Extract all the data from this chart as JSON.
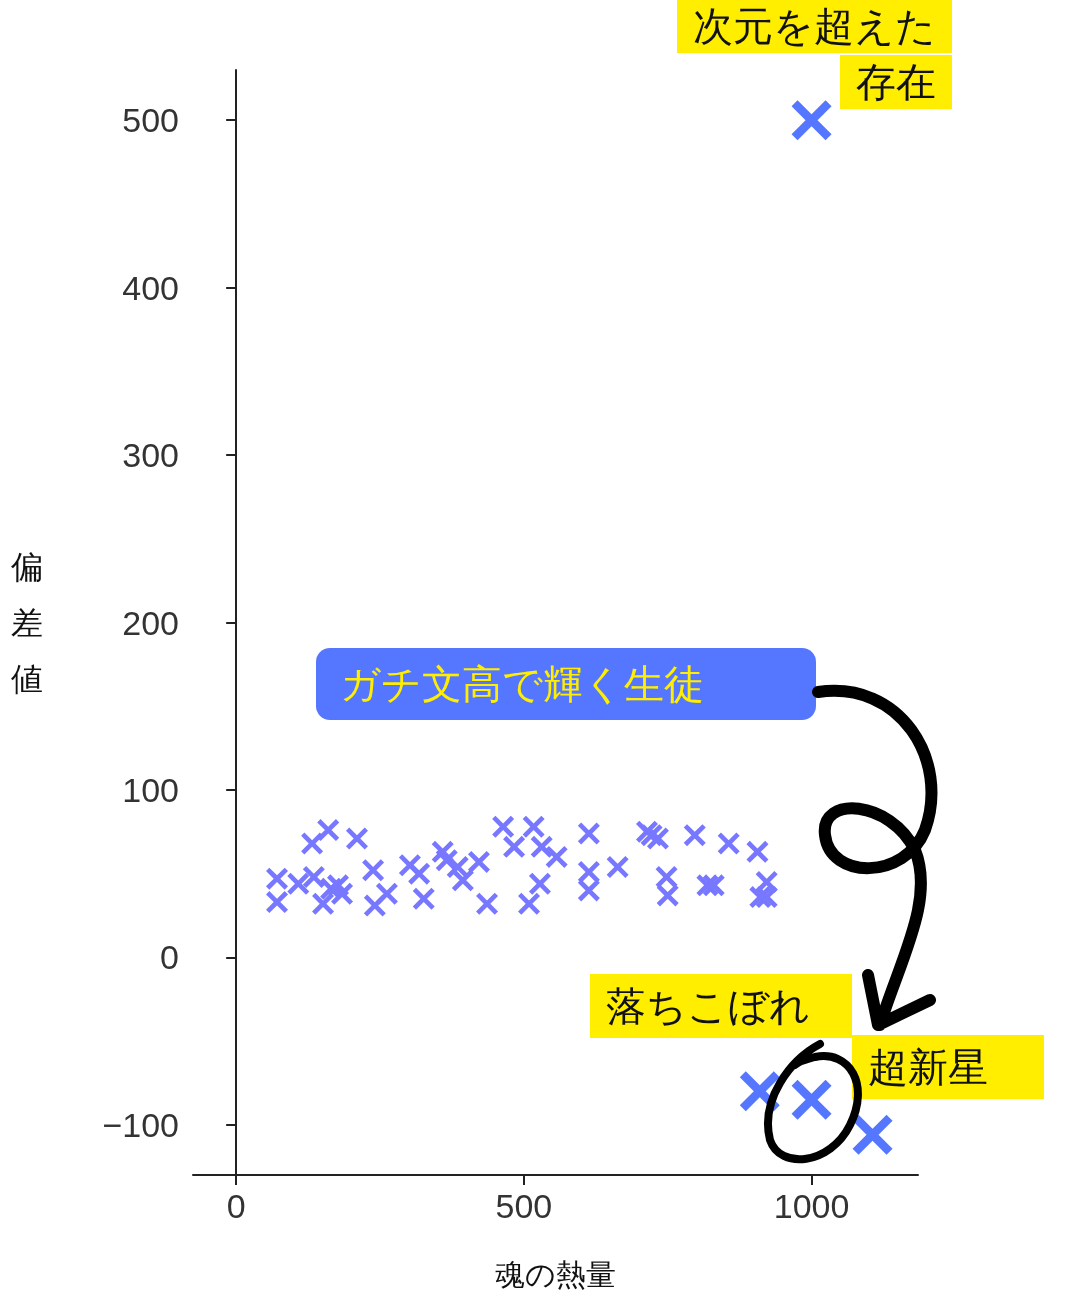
{
  "chart_data": {
    "type": "scatter",
    "xlabel": "魂の熱量",
    "ylabel": "偏差値",
    "xlim": [
      -75,
      1185
    ],
    "ylim": [
      -130,
      530
    ],
    "xticks": [
      0,
      500,
      1000
    ],
    "yticks": [
      -100,
      0,
      100,
      200,
      300,
      400,
      500
    ],
    "grid": false,
    "marker": "cross",
    "series": [
      {
        "color": "#7777ff",
        "x": [
          71,
          71,
          108,
          132,
          160,
          135,
          151,
          165,
          177,
          184,
          210,
          238,
          241,
          262,
          302,
          318,
          326,
          359,
          366,
          385,
          394,
          422,
          436,
          464,
          483,
          517,
          509,
          528,
          531,
          557,
          613,
          613,
          613,
          663,
          714,
          722,
          733,
          748,
          750,
          797,
          819,
          830,
          856,
          906,
          911,
          922,
          922
        ],
        "values": [
          47,
          33,
          44,
          68,
          76,
          48,
          32,
          41,
          43,
          38,
          71,
          52,
          31,
          38,
          55,
          50,
          35,
          63,
          58,
          54,
          46,
          57,
          32,
          78,
          66,
          78,
          32,
          44,
          66,
          60,
          74,
          51,
          40,
          54,
          75,
          73,
          71,
          48,
          37,
          73,
          43,
          43,
          68,
          63,
          36,
          45,
          36
        ]
      },
      {
        "color": "#5577ff",
        "x": [
          1000,
          910,
          1000,
          1106
        ],
        "values": [
          500,
          -80,
          -85,
          -106
        ]
      }
    ],
    "annotations": [
      {
        "text": "次元を超えた存在",
        "x": 1000,
        "y": 500
      },
      "ガチ文高で輝く生徒",
      "落ちこぼれ",
      "超新星"
    ]
  }
}
